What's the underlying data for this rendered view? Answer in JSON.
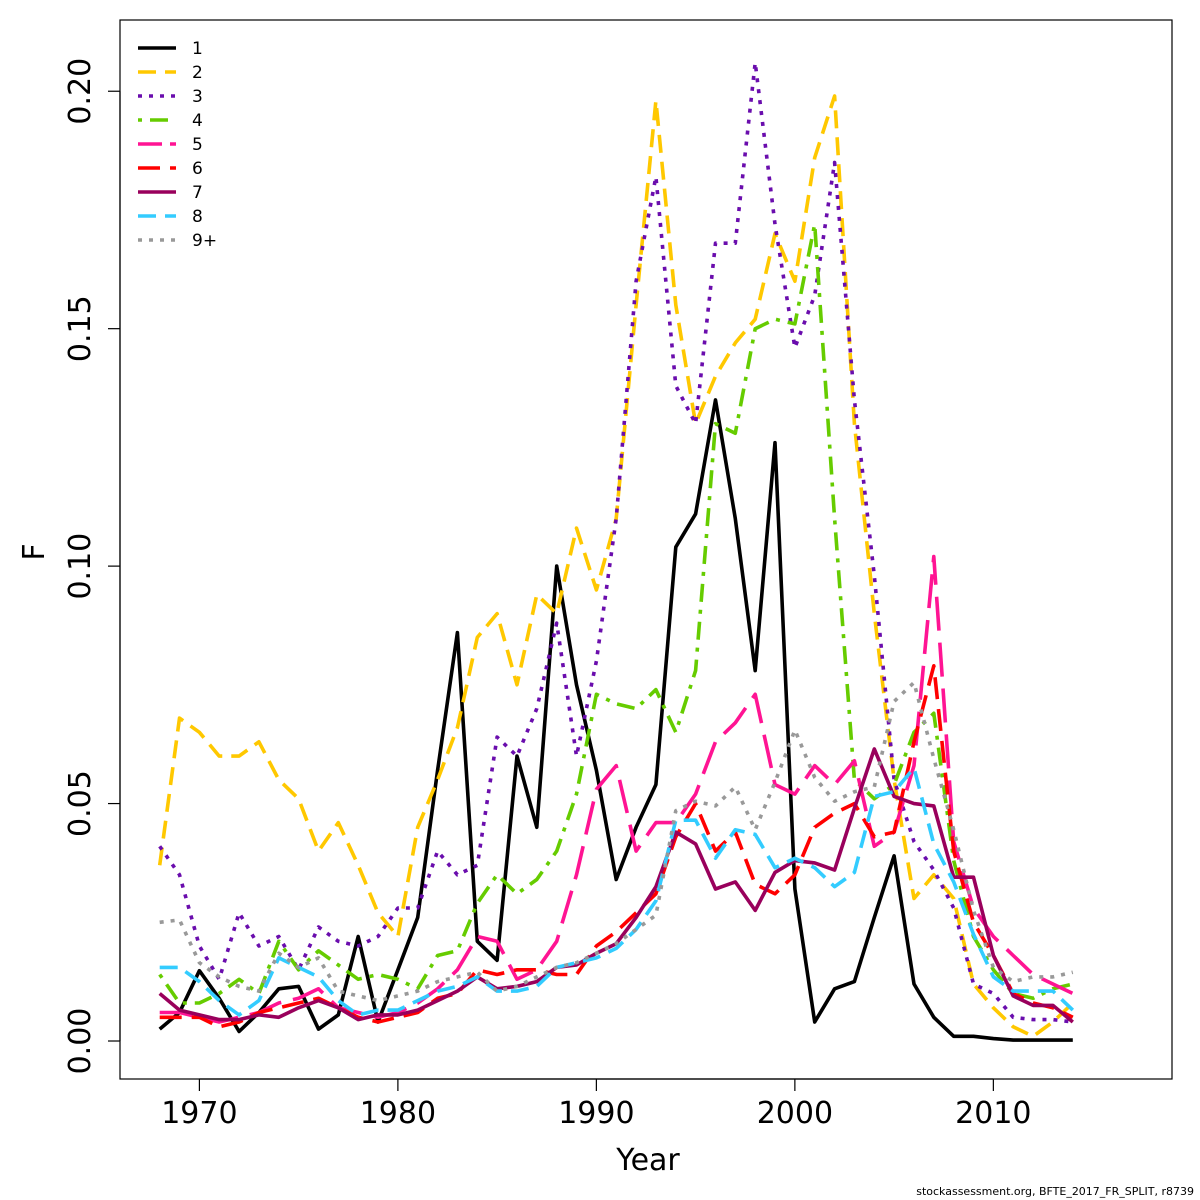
{
  "footer_text": "stockassessment.org, BFTE_2017_FR_SPLIT, r8739",
  "chart_data": {
    "type": "line",
    "title": "",
    "xlabel": "Year",
    "ylabel": "F",
    "xlim": [
      1966,
      2019
    ],
    "ylim": [
      -0.008,
      0.215
    ],
    "x_ticks": [
      1970,
      1980,
      1990,
      2000,
      2010
    ],
    "x_tick_labels": [
      "1970",
      "1980",
      "1990",
      "2000",
      "2010"
    ],
    "y_ticks": [
      0.0,
      0.05,
      0.1,
      0.15,
      0.2
    ],
    "y_tick_labels": [
      "0.00",
      "0.05",
      "0.10",
      "0.15",
      "0.20"
    ],
    "grid": false,
    "legend_position": "top-left",
    "x": [
      1968,
      1969,
      1970,
      1971,
      1972,
      1973,
      1974,
      1975,
      1976,
      1977,
      1978,
      1979,
      1980,
      1981,
      1982,
      1983,
      1984,
      1985,
      1986,
      1987,
      1988,
      1989,
      1990,
      1991,
      1992,
      1993,
      1994,
      1995,
      1996,
      1997,
      1998,
      1999,
      2000,
      2001,
      2002,
      2003,
      2004,
      2005,
      2006,
      2007,
      2008,
      2009,
      2010,
      2011,
      2012,
      2013,
      2014
    ],
    "series": [
      {
        "name": "1",
        "color": "#000000",
        "dash": "solid",
        "values": [
          0.0025,
          0.006,
          0.0148,
          0.009,
          0.002,
          0.006,
          0.011,
          0.0115,
          0.0025,
          0.0055,
          0.022,
          0.004,
          0.015,
          0.026,
          0.057,
          0.086,
          0.021,
          0.017,
          0.06,
          0.045,
          0.1,
          0.075,
          0.057,
          0.034,
          0.045,
          0.054,
          0.104,
          0.111,
          0.135,
          0.11,
          0.078,
          0.126,
          0.032,
          0.004,
          0.011,
          0.0125,
          0.026,
          0.039,
          0.012,
          0.005,
          0.001,
          0.001,
          0.0005,
          0.0002,
          0.0002,
          0.0002,
          0.0002
        ]
      },
      {
        "name": "2",
        "color": "#ffc800",
        "dash": "dashed",
        "values": [
          0.037,
          0.068,
          0.065,
          0.06,
          0.06,
          0.063,
          0.055,
          0.051,
          0.04,
          0.046,
          0.037,
          0.027,
          0.022,
          0.045,
          0.055,
          0.066,
          0.085,
          0.09,
          0.075,
          0.094,
          0.09,
          0.108,
          0.095,
          0.11,
          0.155,
          0.198,
          0.155,
          0.13,
          0.14,
          0.147,
          0.152,
          0.17,
          0.16,
          0.186,
          0.199,
          0.13,
          0.09,
          0.055,
          0.03,
          0.035,
          0.03,
          0.012,
          0.007,
          0.003,
          0.001,
          0.004,
          0.008
        ]
      },
      {
        "name": "3",
        "color": "#6a0dad",
        "dash": "dotted",
        "values": [
          0.041,
          0.035,
          0.02,
          0.013,
          0.027,
          0.02,
          0.022,
          0.015,
          0.024,
          0.021,
          0.02,
          0.022,
          0.028,
          0.028,
          0.04,
          0.035,
          0.037,
          0.064,
          0.06,
          0.07,
          0.088,
          0.06,
          0.08,
          0.11,
          0.16,
          0.182,
          0.138,
          0.13,
          0.168,
          0.168,
          0.206,
          0.172,
          0.146,
          0.157,
          0.185,
          0.135,
          0.098,
          0.055,
          0.042,
          0.036,
          0.028,
          0.012,
          0.01,
          0.005,
          0.0045,
          0.0045,
          0.004
        ]
      },
      {
        "name": "4",
        "color": "#66cc00",
        "dash": "dashdot",
        "values": [
          0.014,
          0.008,
          0.008,
          0.01,
          0.013,
          0.01,
          0.021,
          0.015,
          0.019,
          0.016,
          0.013,
          0.014,
          0.013,
          0.011,
          0.018,
          0.019,
          0.029,
          0.035,
          0.031,
          0.034,
          0.04,
          0.052,
          0.073,
          0.071,
          0.07,
          0.074,
          0.065,
          0.078,
          0.13,
          0.128,
          0.15,
          0.152,
          0.151,
          0.172,
          0.11,
          0.055,
          0.051,
          0.054,
          0.065,
          0.069,
          0.038,
          0.022,
          0.015,
          0.01,
          0.009,
          0.011,
          0.012
        ]
      },
      {
        "name": "5",
        "color": "#ff1493",
        "dash": "longdash",
        "values": [
          0.006,
          0.006,
          0.005,
          0.004,
          0.005,
          0.006,
          0.008,
          0.009,
          0.011,
          0.007,
          0.006,
          0.005,
          0.006,
          0.008,
          0.011,
          0.015,
          0.022,
          0.021,
          0.013,
          0.015,
          0.021,
          0.035,
          0.053,
          0.058,
          0.04,
          0.046,
          0.046,
          0.052,
          0.063,
          0.067,
          0.073,
          0.054,
          0.052,
          0.058,
          0.054,
          0.059,
          0.041,
          0.044,
          0.058,
          0.102,
          0.042,
          0.028,
          0.022,
          0.018,
          0.014,
          0.012,
          0.01
        ]
      },
      {
        "name": "6",
        "color": "#ff0000",
        "dash": "dashed2",
        "values": [
          0.005,
          0.005,
          0.005,
          0.003,
          0.004,
          0.006,
          0.007,
          0.008,
          0.009,
          0.007,
          0.005,
          0.004,
          0.005,
          0.006,
          0.009,
          0.01,
          0.015,
          0.014,
          0.015,
          0.015,
          0.014,
          0.014,
          0.02,
          0.023,
          0.027,
          0.031,
          0.043,
          0.05,
          0.04,
          0.044,
          0.033,
          0.031,
          0.035,
          0.045,
          0.048,
          0.05,
          0.043,
          0.044,
          0.063,
          0.079,
          0.04,
          0.025,
          0.018,
          0.01,
          0.008,
          0.007,
          0.005
        ]
      },
      {
        "name": "7",
        "color": "#99005c",
        "dash": "solid",
        "values": [
          0.01,
          0.0065,
          0.0055,
          0.0045,
          0.0045,
          0.0055,
          0.005,
          0.007,
          0.0085,
          0.007,
          0.0045,
          0.0055,
          0.0055,
          0.0065,
          0.0085,
          0.0105,
          0.0135,
          0.011,
          0.0115,
          0.0125,
          0.0155,
          0.016,
          0.0185,
          0.0205,
          0.026,
          0.0325,
          0.044,
          0.0415,
          0.032,
          0.0335,
          0.0275,
          0.0355,
          0.038,
          0.0375,
          0.036,
          0.049,
          0.0615,
          0.0515,
          0.05,
          0.0495,
          0.0345,
          0.0345,
          0.018,
          0.0095,
          0.0075,
          0.0075,
          0.004
        ]
      },
      {
        "name": "8",
        "color": "#33ccff",
        "dash": "dashed",
        "values": [
          0.0155,
          0.0155,
          0.0125,
          0.0085,
          0.0055,
          0.0085,
          0.0175,
          0.0155,
          0.0135,
          0.0085,
          0.0055,
          0.0065,
          0.0065,
          0.0085,
          0.0105,
          0.0115,
          0.0135,
          0.0105,
          0.0105,
          0.0115,
          0.0155,
          0.0165,
          0.0175,
          0.0195,
          0.0235,
          0.0295,
          0.0465,
          0.0465,
          0.0385,
          0.0445,
          0.0435,
          0.0365,
          0.0385,
          0.0365,
          0.0325,
          0.0355,
          0.0515,
          0.0525,
          0.0575,
          0.0415,
          0.0335,
          0.0225,
          0.0135,
          0.0105,
          0.0105,
          0.0105,
          0.0065
        ]
      },
      {
        "name": "9+",
        "color": "#999999",
        "dash": "dotted",
        "values": [
          0.025,
          0.0255,
          0.0165,
          0.0135,
          0.0115,
          0.0105,
          0.0185,
          0.0155,
          0.0175,
          0.0105,
          0.0095,
          0.0085,
          0.0095,
          0.0105,
          0.0125,
          0.0135,
          0.0145,
          0.0105,
          0.0115,
          0.0135,
          0.0155,
          0.0165,
          0.0185,
          0.0205,
          0.0235,
          0.0265,
          0.0485,
          0.0505,
          0.0495,
          0.0535,
          0.0445,
          0.0545,
          0.0655,
          0.0555,
          0.0505,
          0.0525,
          0.0535,
          0.0715,
          0.0755,
          0.0595,
          0.0445,
          0.0275,
          0.0155,
          0.0125,
          0.0135,
          0.0135,
          0.0145
        ]
      }
    ]
  }
}
